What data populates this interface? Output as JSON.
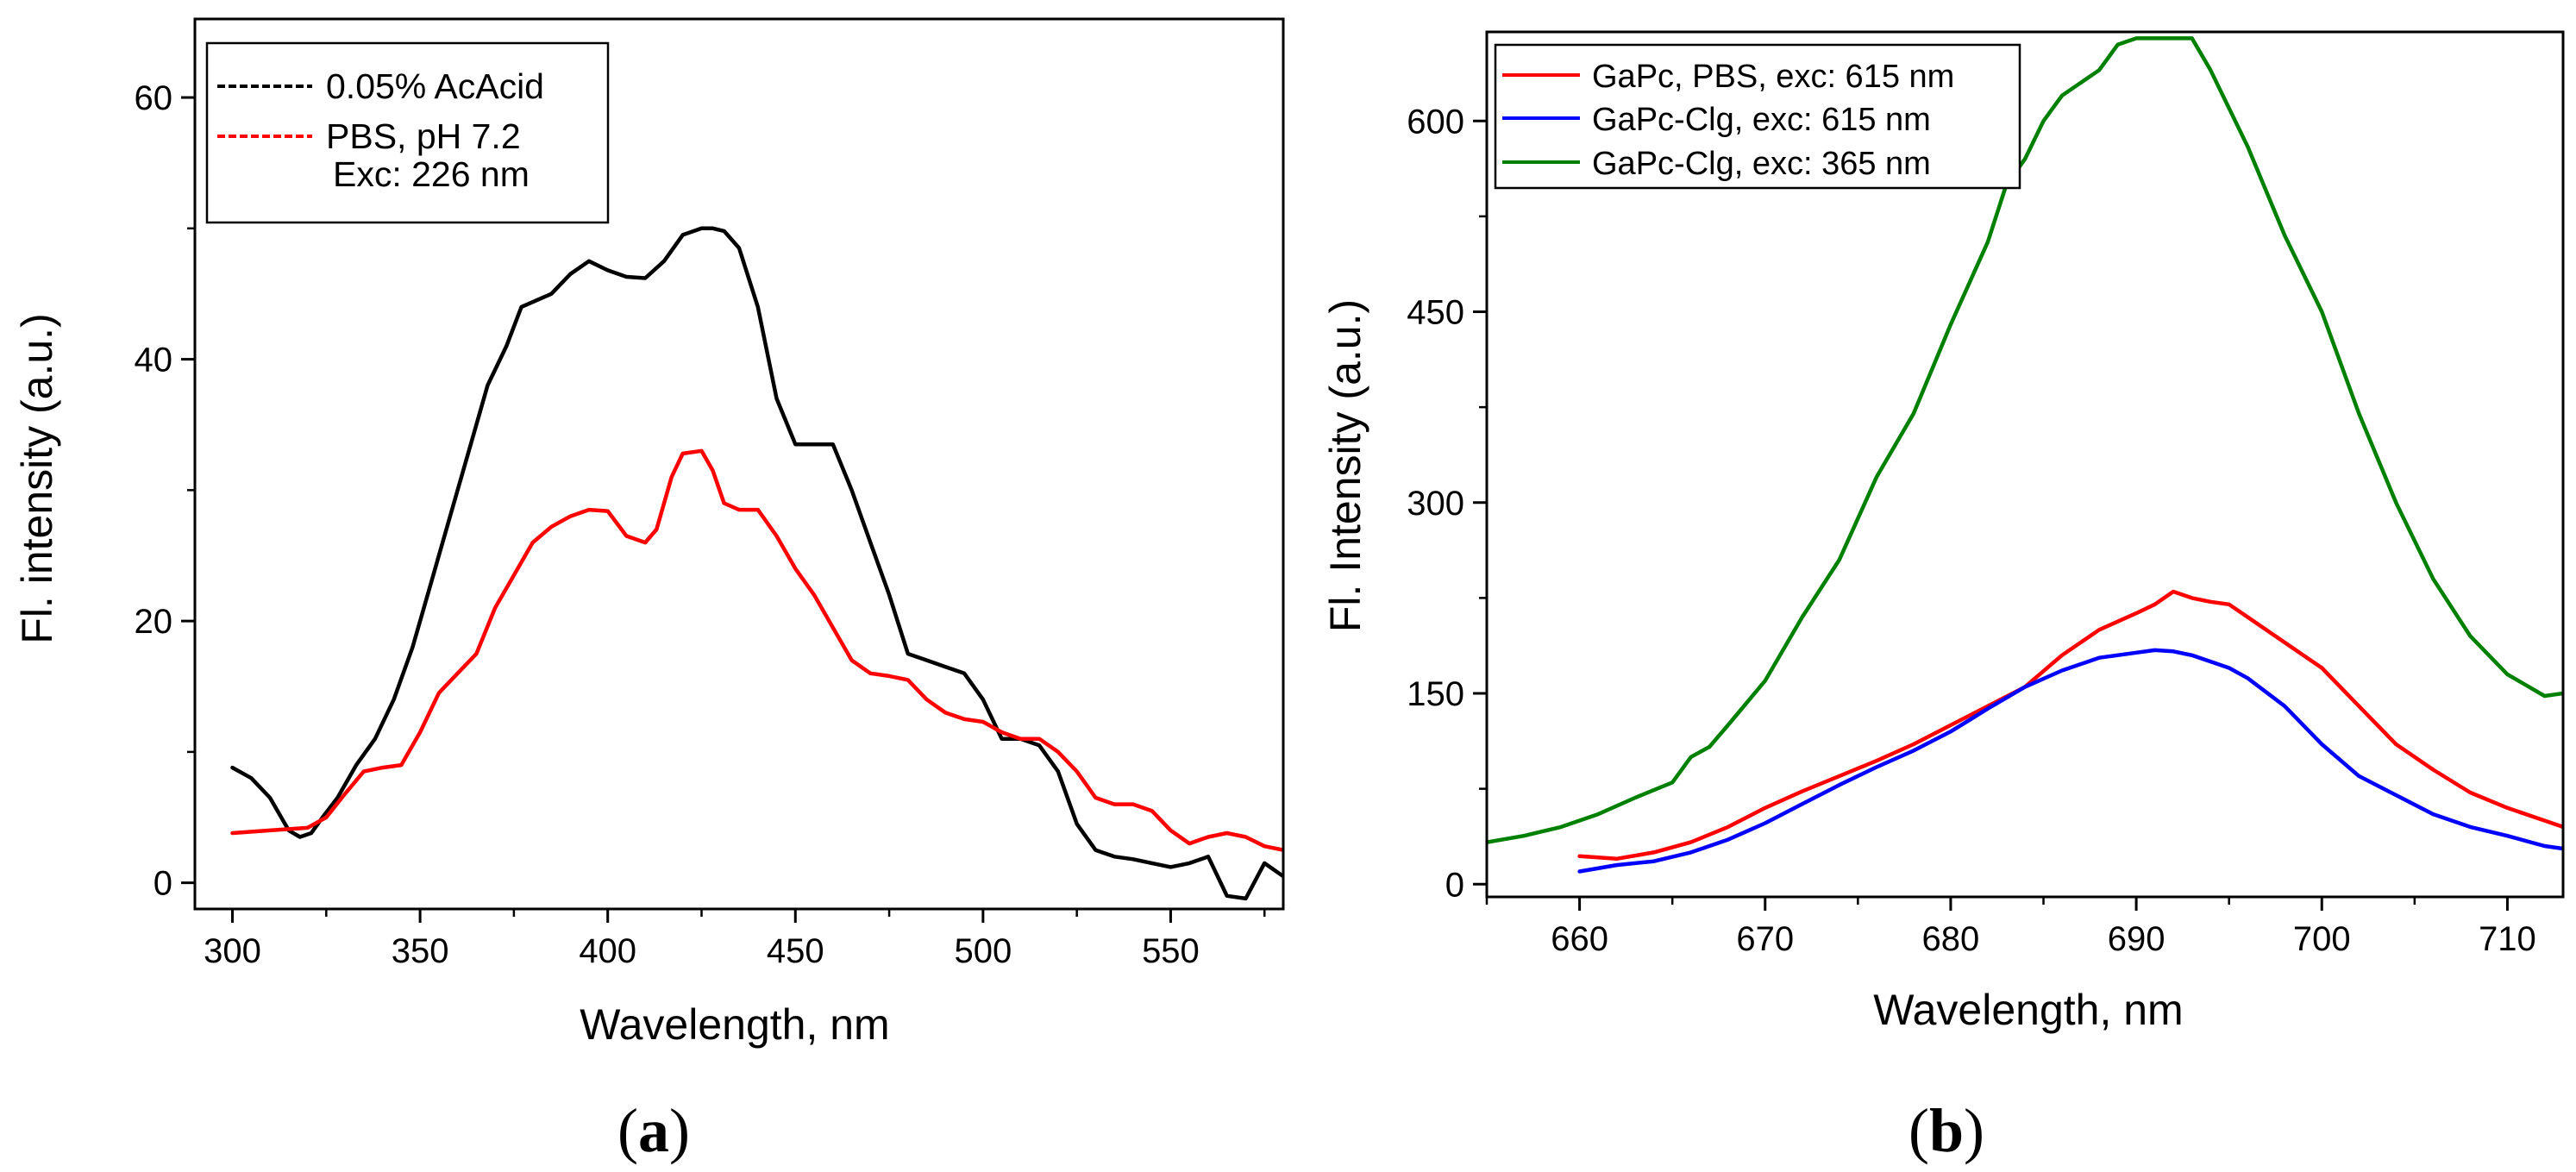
{
  "panels": [
    {
      "label_open": "(",
      "label_letter": "a",
      "label_close": ")"
    },
    {
      "label_open": "(",
      "label_letter": "b",
      "label_close": ")"
    }
  ],
  "chart_data": [
    {
      "type": "line",
      "title": "",
      "xlabel": "Wavelength, nm",
      "ylabel": "Fl. intensity (a.u.)",
      "xlim": [
        290,
        580
      ],
      "ylim": [
        -2,
        66
      ],
      "xticks": [
        300,
        350,
        400,
        450,
        500,
        550
      ],
      "yticks": [
        0,
        20,
        40,
        60
      ],
      "grid": false,
      "legend_position": "top-left",
      "legend_note": "Exc: 226 nm",
      "legend_style": "dashed",
      "series": [
        {
          "name": "0.05% AcAcid",
          "color": "#000000",
          "x": [
            300,
            305,
            310,
            315,
            318,
            321,
            324,
            328,
            333,
            338,
            343,
            348,
            353,
            358,
            363,
            368,
            373,
            377,
            381,
            385,
            390,
            395,
            400,
            405,
            410,
            415,
            420,
            425,
            428,
            431,
            435,
            440,
            445,
            450,
            455,
            460,
            465,
            470,
            475,
            480,
            485,
            490,
            495,
            500,
            505,
            510,
            515,
            520,
            525,
            530,
            535,
            540,
            545,
            550,
            555,
            560,
            565,
            570,
            575,
            580
          ],
          "y": [
            8.8,
            8,
            6.5,
            4,
            3.5,
            3.8,
            5,
            6.5,
            9,
            11,
            14,
            18,
            23,
            28,
            33,
            38,
            41,
            44,
            44.5,
            45,
            46.5,
            47.5,
            46.8,
            46.3,
            46.2,
            47.5,
            49.5,
            50,
            50,
            49.8,
            48.5,
            44,
            37,
            33.5,
            33.5,
            33.5,
            30,
            26,
            22,
            17.5,
            17,
            16.5,
            16,
            14,
            11,
            11,
            10.5,
            8.5,
            4.5,
            2.5,
            2,
            1.8,
            1.5,
            1.2,
            1.5,
            2,
            -1,
            -1.2,
            1.5,
            0.5
          ]
        },
        {
          "name": "PBS, pH 7.2",
          "color": "#ff0000",
          "x": [
            300,
            310,
            320,
            325,
            330,
            335,
            340,
            345,
            350,
            355,
            360,
            365,
            370,
            375,
            380,
            385,
            390,
            395,
            400,
            405,
            410,
            413,
            417,
            420,
            425,
            428,
            431,
            435,
            440,
            445,
            450,
            455,
            460,
            465,
            470,
            475,
            480,
            485,
            490,
            495,
            500,
            505,
            510,
            515,
            520,
            525,
            530,
            535,
            540,
            545,
            550,
            555,
            560,
            565,
            570,
            575,
            580
          ],
          "y": [
            3.8,
            4,
            4.2,
            5,
            6.8,
            8.5,
            8.8,
            9,
            11.5,
            14.5,
            16,
            17.5,
            21,
            23.5,
            26,
            27.2,
            28,
            28.5,
            28.4,
            26.5,
            26,
            27,
            31,
            32.8,
            33,
            31.5,
            29,
            28.5,
            28.5,
            26.5,
            24,
            22,
            19.5,
            17,
            16,
            15.8,
            15.5,
            14,
            13,
            12.5,
            12.3,
            11.5,
            11,
            11,
            10,
            8.5,
            6.5,
            6,
            6,
            5.5,
            4,
            3,
            3.5,
            3.8,
            3.5,
            2.8,
            2.5
          ]
        }
      ]
    },
    {
      "type": "line",
      "title": "",
      "xlabel": "Wavelength, nm",
      "ylabel": "Fl. Intensity (a.u.)",
      "xlim": [
        655,
        713
      ],
      "ylim": [
        -10,
        670
      ],
      "xticks": [
        660,
        670,
        680,
        690,
        700,
        710
      ],
      "yticks": [
        0,
        150,
        300,
        450,
        600
      ],
      "grid": false,
      "legend_position": "top-left",
      "legend_style": "solid",
      "series": [
        {
          "name": "GaPc, PBS, exc: 615 nm",
          "color": "#ff0000",
          "x": [
            660,
            662,
            664,
            666,
            668,
            670,
            672,
            674,
            676,
            678,
            680,
            682,
            684,
            686,
            688,
            690,
            691,
            692,
            693,
            694,
            695,
            696,
            698,
            700,
            702,
            704,
            706,
            708,
            710,
            712,
            713
          ],
          "y": [
            22,
            20,
            25,
            33,
            45,
            60,
            73,
            85,
            97,
            110,
            125,
            140,
            155,
            180,
            200,
            213,
            220,
            230,
            225,
            222,
            220,
            210,
            190,
            170,
            140,
            110,
            90,
            72,
            60,
            50,
            45
          ]
        },
        {
          "name": "GaPc-Clg,   exc: 615 nm",
          "color": "#0000ff",
          "x": [
            660,
            662,
            664,
            666,
            668,
            670,
            672,
            674,
            676,
            678,
            680,
            682,
            684,
            686,
            688,
            690,
            691,
            692,
            693,
            694,
            695,
            696,
            698,
            700,
            702,
            704,
            706,
            708,
            710,
            712,
            713
          ],
          "y": [
            10,
            15,
            18,
            25,
            35,
            48,
            63,
            78,
            92,
            105,
            120,
            138,
            155,
            168,
            178,
            182,
            184,
            183,
            180,
            175,
            170,
            162,
            140,
            110,
            85,
            70,
            55,
            45,
            38,
            30,
            28
          ]
        },
        {
          "name": "GaPc-Clg,   exc: 365 nm",
          "color": "#008000",
          "x": [
            655,
            657,
            659,
            661,
            663,
            665,
            666,
            667,
            668,
            670,
            672,
            674,
            676,
            678,
            680,
            682,
            683,
            684,
            685,
            686,
            688,
            689,
            690,
            691,
            692,
            693,
            694,
            696,
            698,
            700,
            702,
            704,
            706,
            708,
            710,
            712,
            713
          ],
          "y": [
            33,
            38,
            45,
            55,
            68,
            80,
            100,
            108,
            125,
            160,
            210,
            255,
            320,
            370,
            440,
            505,
            550,
            570,
            600,
            620,
            640,
            660,
            665,
            665,
            665,
            665,
            640,
            580,
            510,
            450,
            370,
            300,
            240,
            195,
            165,
            148,
            150
          ]
        }
      ]
    }
  ]
}
